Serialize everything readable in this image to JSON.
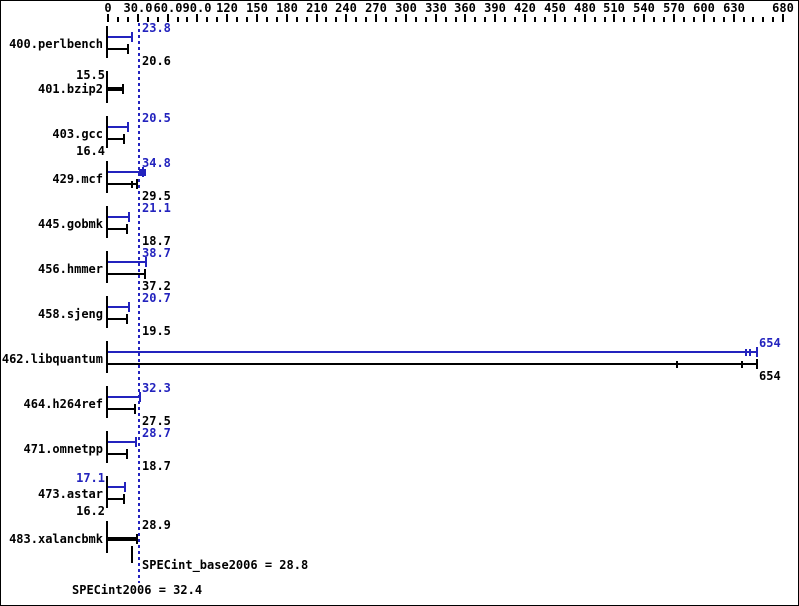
{
  "colors": {
    "peak_blue": "#2323BE",
    "base_black": "#000000",
    "background": "#FFFFFF"
  },
  "chart_data": {
    "type": "bar",
    "orientation": "horizontal",
    "xlim": [
      0,
      680
    ],
    "minor_tick_step": 10,
    "major_tick_step": 30,
    "grid": "off",
    "legend": "none",
    "axis_labels": [
      {
        "value": 0,
        "text": "0"
      },
      {
        "value": 30,
        "text": "30.0"
      },
      {
        "value": 60,
        "text": "60.0"
      },
      {
        "value": 90,
        "text": "90.0"
      },
      {
        "value": 120,
        "text": "120"
      },
      {
        "value": 150,
        "text": "150"
      },
      {
        "value": 180,
        "text": "180"
      },
      {
        "value": 210,
        "text": "210"
      },
      {
        "value": 240,
        "text": "240"
      },
      {
        "value": 270,
        "text": "270"
      },
      {
        "value": 300,
        "text": "300"
      },
      {
        "value": 330,
        "text": "330"
      },
      {
        "value": 360,
        "text": "360"
      },
      {
        "value": 390,
        "text": "390"
      },
      {
        "value": 420,
        "text": "420"
      },
      {
        "value": 450,
        "text": "450"
      },
      {
        "value": 480,
        "text": "480"
      },
      {
        "value": 510,
        "text": "510"
      },
      {
        "value": 540,
        "text": "540"
      },
      {
        "value": 570,
        "text": "570"
      },
      {
        "value": 600,
        "text": "600"
      },
      {
        "value": 630,
        "text": "630"
      },
      {
        "value": 680,
        "text": "680"
      }
    ],
    "rows": [
      {
        "name": "400.perlbench",
        "peak": 23.8,
        "base": 20.6,
        "peak_label": "23.8",
        "base_label": "20.6",
        "peak_side": "right",
        "base_side": "right"
      },
      {
        "name": "401.bzip2",
        "single": 15.5,
        "single_label": "15.5",
        "single_side": "left"
      },
      {
        "name": "403.gcc",
        "peak": 20.5,
        "base": 16.4,
        "peak_label": "20.5",
        "base_label": "16.4",
        "peak_side": "right",
        "base_side": "left"
      },
      {
        "name": "429.mcf",
        "peak": 34.8,
        "base": 29.5,
        "peak_label": "34.8",
        "base_label": "29.5",
        "peak_side": "right",
        "base_side": "right",
        "peak_marker": "square",
        "base_ticks": [
          24
        ]
      },
      {
        "name": "445.gobmk",
        "peak": 21.1,
        "base": 18.7,
        "peak_label": "21.1",
        "base_label": "18.7",
        "peak_side": "right",
        "base_side": "right"
      },
      {
        "name": "456.hmmer",
        "peak": 38.7,
        "base": 37.2,
        "peak_label": "38.7",
        "base_label": "37.2",
        "peak_side": "right",
        "base_side": "right"
      },
      {
        "name": "458.sjeng",
        "peak": 20.7,
        "base": 19.5,
        "peak_label": "20.7",
        "base_label": "19.5",
        "peak_side": "right",
        "base_side": "right"
      },
      {
        "name": "462.libquantum",
        "peak": 654,
        "base": 654,
        "peak_label": "654",
        "base_label": "654",
        "peak_side": "end",
        "base_side": "end",
        "peak_ticks": [
          642,
          647
        ],
        "base_ticks": [
          573,
          638
        ]
      },
      {
        "name": "464.h264ref",
        "peak": 32.3,
        "base": 27.5,
        "peak_label": "32.3",
        "base_label": "27.5",
        "peak_side": "right",
        "base_side": "right"
      },
      {
        "name": "471.omnetpp",
        "peak": 28.7,
        "base": 18.7,
        "peak_label": "28.7",
        "base_label": "18.7",
        "peak_side": "right",
        "base_side": "right"
      },
      {
        "name": "473.astar",
        "peak": 17.1,
        "base": 16.2,
        "peak_label": "17.1",
        "base_label": "16.2",
        "peak_side": "left",
        "base_side": "left"
      },
      {
        "name": "483.xalancbmk",
        "single": 28.9,
        "single_label": "28.9",
        "single_side": "right"
      }
    ],
    "reference_lines": [
      {
        "name": "SPECint2006",
        "value": 32.4,
        "style": "dotted",
        "color": "peak"
      },
      {
        "name": "SPECint_base2006",
        "value": 28.8,
        "style": "solid",
        "color": "base"
      }
    ],
    "summary": {
      "base_text": "SPECint_base2006 = 28.8",
      "peak_text": "SPECint2006 = 32.4",
      "base_value": 28.8,
      "peak_value": 32.4
    }
  }
}
